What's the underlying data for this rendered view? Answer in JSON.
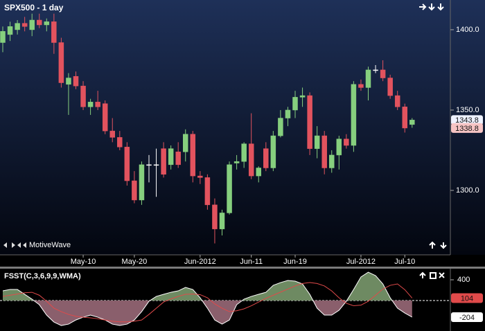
{
  "chart_data": [
    {
      "type": "candlestick",
      "title": "SPX500 - 1 day",
      "annotation": "MotiveWave",
      "categories": [
        null,
        null,
        null,
        null,
        null,
        null,
        null,
        null,
        null,
        null,
        null,
        "May-10",
        null,
        null,
        null,
        null,
        null,
        null,
        "May-20",
        null,
        null,
        null,
        null,
        null,
        null,
        null,
        null,
        "Jun-2012",
        null,
        null,
        null,
        null,
        null,
        null,
        "Jun-11",
        null,
        null,
        null,
        null,
        null,
        "Jun-19",
        null,
        null,
        null,
        null,
        null,
        null,
        null,
        null,
        "Jul-2012",
        null,
        null,
        null,
        null,
        null,
        "Jul-10",
        null
      ],
      "open": [
        1392,
        1397,
        1400,
        1404,
        1400,
        1406,
        1403,
        1405,
        1392,
        1366,
        1371,
        1365,
        1352,
        1355,
        1354,
        1337,
        1333,
        1327,
        1306,
        1294,
        1316,
        1316,
        1326,
        1316,
        1324,
        1324,
        1335,
        1309,
        1308,
        1291,
        1276,
        1286,
        1317,
        1318,
        1329,
        1309,
        1326,
        1314,
        1334,
        1345,
        1350,
        1358,
        1359,
        1326,
        1334,
        1314,
        1322,
        1332,
        1328,
        1366,
        1364,
        1375,
        1375,
        1370,
        1359,
        1352,
        1341
      ],
      "high": [
        1402,
        1405,
        1406,
        1408,
        1410,
        1410,
        1407,
        1410,
        1395,
        1373,
        1374,
        1368,
        1357,
        1362,
        1356,
        1345,
        1337,
        1330,
        1312,
        1318,
        1322,
        1326,
        1330,
        1328,
        1330,
        1338,
        1337,
        1312,
        1310,
        1295,
        1288,
        1318,
        1322,
        1330,
        1348,
        1315,
        1330,
        1337,
        1350,
        1352,
        1362,
        1364,
        1361,
        1340,
        1337,
        1325,
        1334,
        1335,
        1368,
        1369,
        1377,
        1378,
        1381,
        1372,
        1362,
        1354,
        1345
      ],
      "low": [
        1386,
        1393,
        1397,
        1399,
        1396,
        1401,
        1399,
        1385,
        1364,
        1347,
        1363,
        1350,
        1347,
        1350,
        1335,
        1330,
        1325,
        1303,
        1292,
        1291,
        1305,
        1296,
        1308,
        1313,
        1314,
        1318,
        1305,
        1304,
        1288,
        1267,
        1272,
        1285,
        1313,
        1314,
        1307,
        1305,
        1312,
        1312,
        1333,
        1340,
        1345,
        1352,
        1322,
        1320,
        1310,
        1311,
        1313,
        1326,
        1324,
        1362,
        1356,
        1373,
        1368,
        1357,
        1350,
        1336,
        1339
      ],
      "close": [
        1399,
        1402,
        1404,
        1402,
        1406,
        1403,
        1405,
        1392,
        1367,
        1370,
        1365,
        1352,
        1355,
        1352,
        1337,
        1333,
        1327,
        1306,
        1294,
        1316,
        1316,
        1316,
        1310,
        1326,
        1316,
        1335,
        1309,
        1308,
        1291,
        1276,
        1286,
        1316,
        1318,
        1329,
        1309,
        1314,
        1314,
        1334,
        1345,
        1350,
        1358,
        1359,
        1326,
        1334,
        1314,
        1322,
        1332,
        1328,
        1366,
        1364,
        1375,
        1375,
        1370,
        1359,
        1352,
        1338.8,
        1343.8
      ],
      "up_color": "#86cf7e",
      "down_color": "#e2535e",
      "doji_color": "#ffffff",
      "ylim": [
        1261.2,
        1418.5
      ],
      "yticks": [
        {
          "value": 1300,
          "label": "1300.0"
        },
        {
          "value": 1350,
          "label": "1350.0"
        },
        {
          "value": 1400,
          "label": "1400.0"
        }
      ]
    },
    {
      "type": "area",
      "title": "FSST(C,3,6,9,9,WMA)",
      "series": [
        {
          "color": "#ffffff",
          "fill_above": "#6e8a62",
          "fill_below": "#8a5f6c",
          "values": [
            221,
            243,
            243,
            165,
            86,
            -3,
            -171,
            -283,
            -339,
            -317,
            -250,
            -205,
            -171,
            -205,
            -250,
            -317,
            -339,
            -317,
            -250,
            -115,
            53,
            131,
            165,
            198,
            221,
            277,
            243,
            109,
            -59,
            -250,
            -317,
            -250,
            -3,
            86,
            131,
            165,
            198,
            310,
            355,
            389,
            378,
            333,
            165,
            -59,
            -171,
            -171,
            -93,
            53,
            243,
            445,
            523,
            467,
            333,
            109,
            -59,
            -138,
            -204
          ]
        },
        {
          "color": "#e04a4a",
          "values": [
            131,
            150,
            170,
            190,
            198,
            150,
            53,
            -59,
            -115,
            -160,
            -190,
            -205,
            -215,
            -230,
            -250,
            -270,
            -280,
            -280,
            -270,
            -250,
            -160,
            -60,
            40,
            90,
            131,
            165,
            170,
            160,
            109,
            10,
            -59,
            -115,
            -100,
            -70,
            -20,
            40,
            100,
            150,
            200,
            250,
            300,
            340,
            355,
            340,
            300,
            220,
            109,
            20,
            -20,
            -10,
            53,
            150,
            250,
            310,
            333,
            240,
            104
          ]
        }
      ],
      "ylim": [
        -428,
        557
      ],
      "yticks": [
        400
      ]
    }
  ]
}
